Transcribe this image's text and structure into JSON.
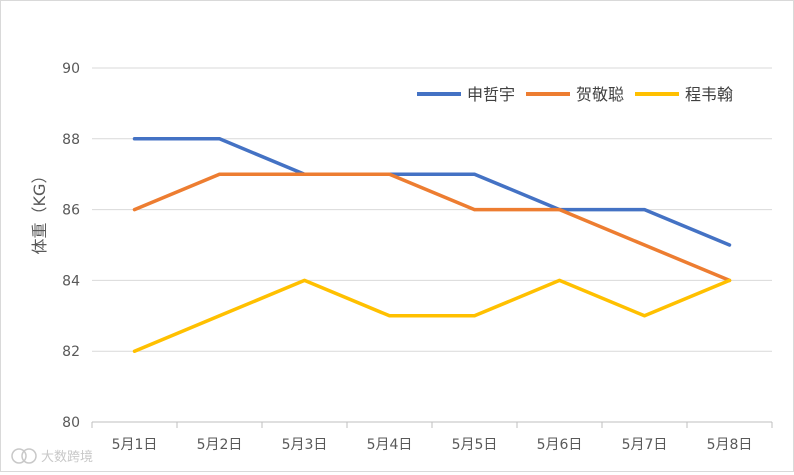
{
  "chart_data": {
    "type": "line",
    "title": "",
    "xlabel": "",
    "ylabel": "体重（KG）",
    "categories": [
      "5月1日",
      "5月2日",
      "5月3日",
      "5月4日",
      "5月5日",
      "5月6日",
      "5月7日",
      "5月8日"
    ],
    "ylim": [
      80,
      90
    ],
    "yticks": [
      80,
      82,
      84,
      86,
      88,
      90
    ],
    "grid": true,
    "legend_position": "top-right",
    "series": [
      {
        "name": "申哲宇",
        "color": "#4472C4",
        "values": [
          88,
          88,
          87,
          87,
          87,
          86,
          86,
          85
        ]
      },
      {
        "name": "贺敬聪",
        "color": "#ED7D31",
        "values": [
          86,
          87,
          87,
          87,
          86,
          86,
          85,
          84
        ]
      },
      {
        "name": "程韦翰",
        "color": "#FFC000",
        "values": [
          82,
          83,
          84,
          83,
          83,
          84,
          83,
          84
        ]
      }
    ]
  },
  "watermark": {
    "text": "大数跨境"
  }
}
